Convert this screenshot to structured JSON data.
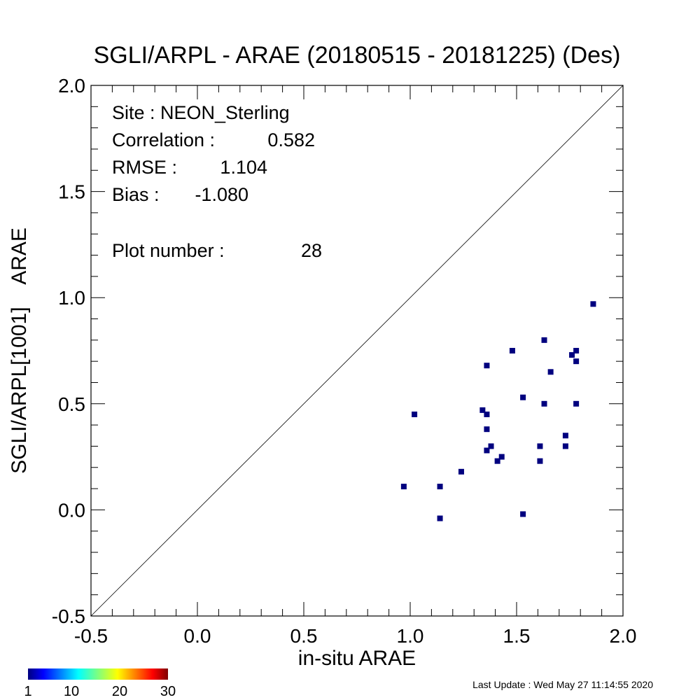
{
  "chart_data": {
    "type": "scatter",
    "title": "SGLI/ARPL - ARAE (20180515 - 20181225) (Des)",
    "xlabel": "in-situ ARAE",
    "ylabel": "SGLI/ARPL[1001]    ARAE",
    "xlim": [
      -0.5,
      2.0
    ],
    "ylim": [
      -0.5,
      2.0
    ],
    "x_ticks": [
      "-0.5",
      "0.0",
      "0.5",
      "1.0",
      "1.5",
      "2.0"
    ],
    "y_ticks": [
      "-0.5",
      "0.0",
      "0.5",
      "1.0",
      "1.5",
      "2.0"
    ],
    "reference_line": "1:1",
    "marker_color": "#00007f",
    "grid": false,
    "points": [
      {
        "x": 0.97,
        "y": 0.11
      },
      {
        "x": 1.02,
        "y": 0.45
      },
      {
        "x": 1.14,
        "y": 0.11
      },
      {
        "x": 1.14,
        "y": -0.04
      },
      {
        "x": 1.24,
        "y": 0.18
      },
      {
        "x": 1.34,
        "y": 0.47
      },
      {
        "x": 1.36,
        "y": 0.45
      },
      {
        "x": 1.36,
        "y": 0.38
      },
      {
        "x": 1.36,
        "y": 0.28
      },
      {
        "x": 1.36,
        "y": 0.68
      },
      {
        "x": 1.38,
        "y": 0.3
      },
      {
        "x": 1.41,
        "y": 0.23
      },
      {
        "x": 1.43,
        "y": 0.25
      },
      {
        "x": 1.48,
        "y": 0.75
      },
      {
        "x": 1.53,
        "y": 0.53
      },
      {
        "x": 1.53,
        "y": -0.02
      },
      {
        "x": 1.61,
        "y": 0.3
      },
      {
        "x": 1.61,
        "y": 0.23
      },
      {
        "x": 1.63,
        "y": 0.8
      },
      {
        "x": 1.63,
        "y": 0.5
      },
      {
        "x": 1.66,
        "y": 0.65
      },
      {
        "x": 1.73,
        "y": 0.35
      },
      {
        "x": 1.73,
        "y": 0.3
      },
      {
        "x": 1.76,
        "y": 0.73
      },
      {
        "x": 1.78,
        "y": 0.75
      },
      {
        "x": 1.78,
        "y": 0.7
      },
      {
        "x": 1.78,
        "y": 0.5
      },
      {
        "x": 1.86,
        "y": 0.97
      }
    ],
    "stats": {
      "site": "Site : NEON_Sterling",
      "correlation_label": "Correlation :",
      "correlation_value": "0.582",
      "rmse_label": "RMSE :",
      "rmse_value": "1.104",
      "bias_label": "Bias :",
      "bias_value": "-1.080",
      "plot_number_label": "Plot number :",
      "plot_number_value": "28"
    },
    "colorbar": {
      "ticks": [
        "1",
        "10",
        "20",
        "30"
      ],
      "tick_values": [
        1,
        10,
        20,
        30
      ],
      "range": [
        1,
        30
      ],
      "colormap": "jet"
    }
  },
  "footer": {
    "last_update": "Last Update : Wed May 27 11:14:55 2020"
  }
}
